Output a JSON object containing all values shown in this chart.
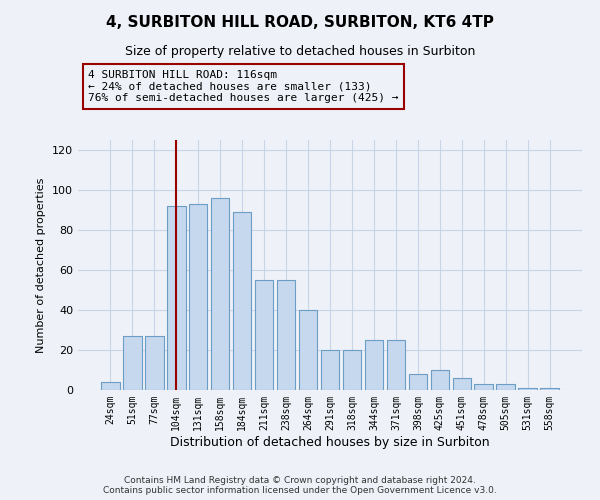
{
  "title": "4, SURBITON HILL ROAD, SURBITON, KT6 4TP",
  "subtitle": "Size of property relative to detached houses in Surbiton",
  "xlabel": "Distribution of detached houses by size in Surbiton",
  "ylabel": "Number of detached properties",
  "categories": [
    "24sqm",
    "51sqm",
    "77sqm",
    "104sqm",
    "131sqm",
    "158sqm",
    "184sqm",
    "211sqm",
    "238sqm",
    "264sqm",
    "291sqm",
    "318sqm",
    "344sqm",
    "371sqm",
    "398sqm",
    "425sqm",
    "451sqm",
    "478sqm",
    "505sqm",
    "531sqm",
    "558sqm"
  ],
  "values": [
    4,
    27,
    27,
    92,
    93,
    96,
    89,
    55,
    55,
    40,
    20,
    20,
    25,
    25,
    8,
    10,
    6,
    3,
    3,
    1,
    1
  ],
  "bar_color": "#c5d8ee",
  "bar_edge_color": "#6b9dc5",
  "vline_x_idx": 3,
  "vline_color": "#990000",
  "annotation_line1": "4 SURBITON HILL ROAD: 116sqm",
  "annotation_line2": "← 24% of detached houses are smaller (133)",
  "annotation_line3": "76% of semi-detached houses are larger (425) →",
  "annotation_box_edgecolor": "#990000",
  "ylim": [
    0,
    125
  ],
  "yticks": [
    0,
    20,
    40,
    60,
    80,
    100,
    120
  ],
  "grid_color": "#c8d4e8",
  "bg_color": "#eef2f8",
  "title_fontsize": 11,
  "subtitle_fontsize": 9,
  "ylabel_fontsize": 8,
  "xlabel_fontsize": 9,
  "tick_fontsize": 8,
  "xtick_fontsize": 7,
  "footer": "Contains HM Land Registry data © Crown copyright and database right 2024.\nContains public sector information licensed under the Open Government Licence v3.0."
}
